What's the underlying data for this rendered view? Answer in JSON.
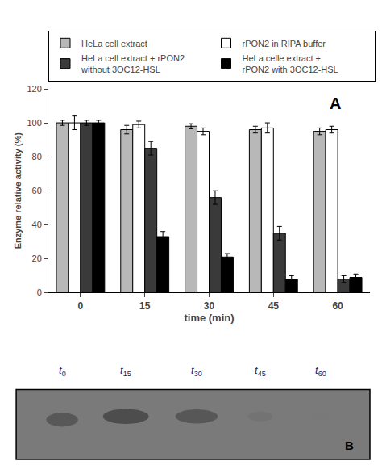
{
  "chart_data": {
    "type": "bar",
    "categories": [
      0,
      15,
      30,
      45,
      60
    ],
    "xlabel": "time (min)",
    "ylabel": "Enzyme relative activity (%)",
    "series": [
      {
        "name": "HeLa cell extract",
        "color": "#b8b8b8",
        "values": [
          100,
          96,
          98,
          96,
          95
        ],
        "errors": [
          1.5,
          2.5,
          1.5,
          2,
          2
        ]
      },
      {
        "name": "rPON2 in RIPA buffer",
        "color": "#ffffff",
        "values": [
          100,
          99,
          95,
          97,
          96
        ],
        "errors": [
          4,
          2,
          2,
          3,
          2
        ]
      },
      {
        "name": "HeLa cell extract + rPON2\nwithout 3OC12-HSL",
        "color": "#3a3a3a",
        "values": [
          100,
          85,
          56,
          35,
          8
        ],
        "errors": [
          1.5,
          4,
          4,
          4,
          2
        ]
      },
      {
        "name": "HeLa celle extract +\nrPON2 with 3OC12-HSL",
        "color": "#000000",
        "values": [
          100,
          33,
          21,
          8,
          9
        ],
        "errors": [
          1.5,
          3,
          2,
          2,
          2
        ]
      }
    ],
    "ylim": [
      0,
      120
    ],
    "yticks": [
      0,
      20,
      40,
      60,
      80,
      100,
      120
    ],
    "grid": false,
    "legend": "top",
    "annotations": [
      "A",
      "B"
    ],
    "blot": {
      "color": "#7a7a7a",
      "colors": [
        "#4a4a4a",
        "#424242",
        "#484848",
        "#686868",
        "#787878"
      ],
      "lanes": [
        {
          "label": "t",
          "subscript": "0"
        },
        {
          "label": "t",
          "subscript": "15"
        },
        {
          "label": "t",
          "subscript": "30"
        },
        {
          "label": "t",
          "subscript": "45"
        },
        {
          "label": "t",
          "subscript": "60"
        }
      ]
    }
  }
}
